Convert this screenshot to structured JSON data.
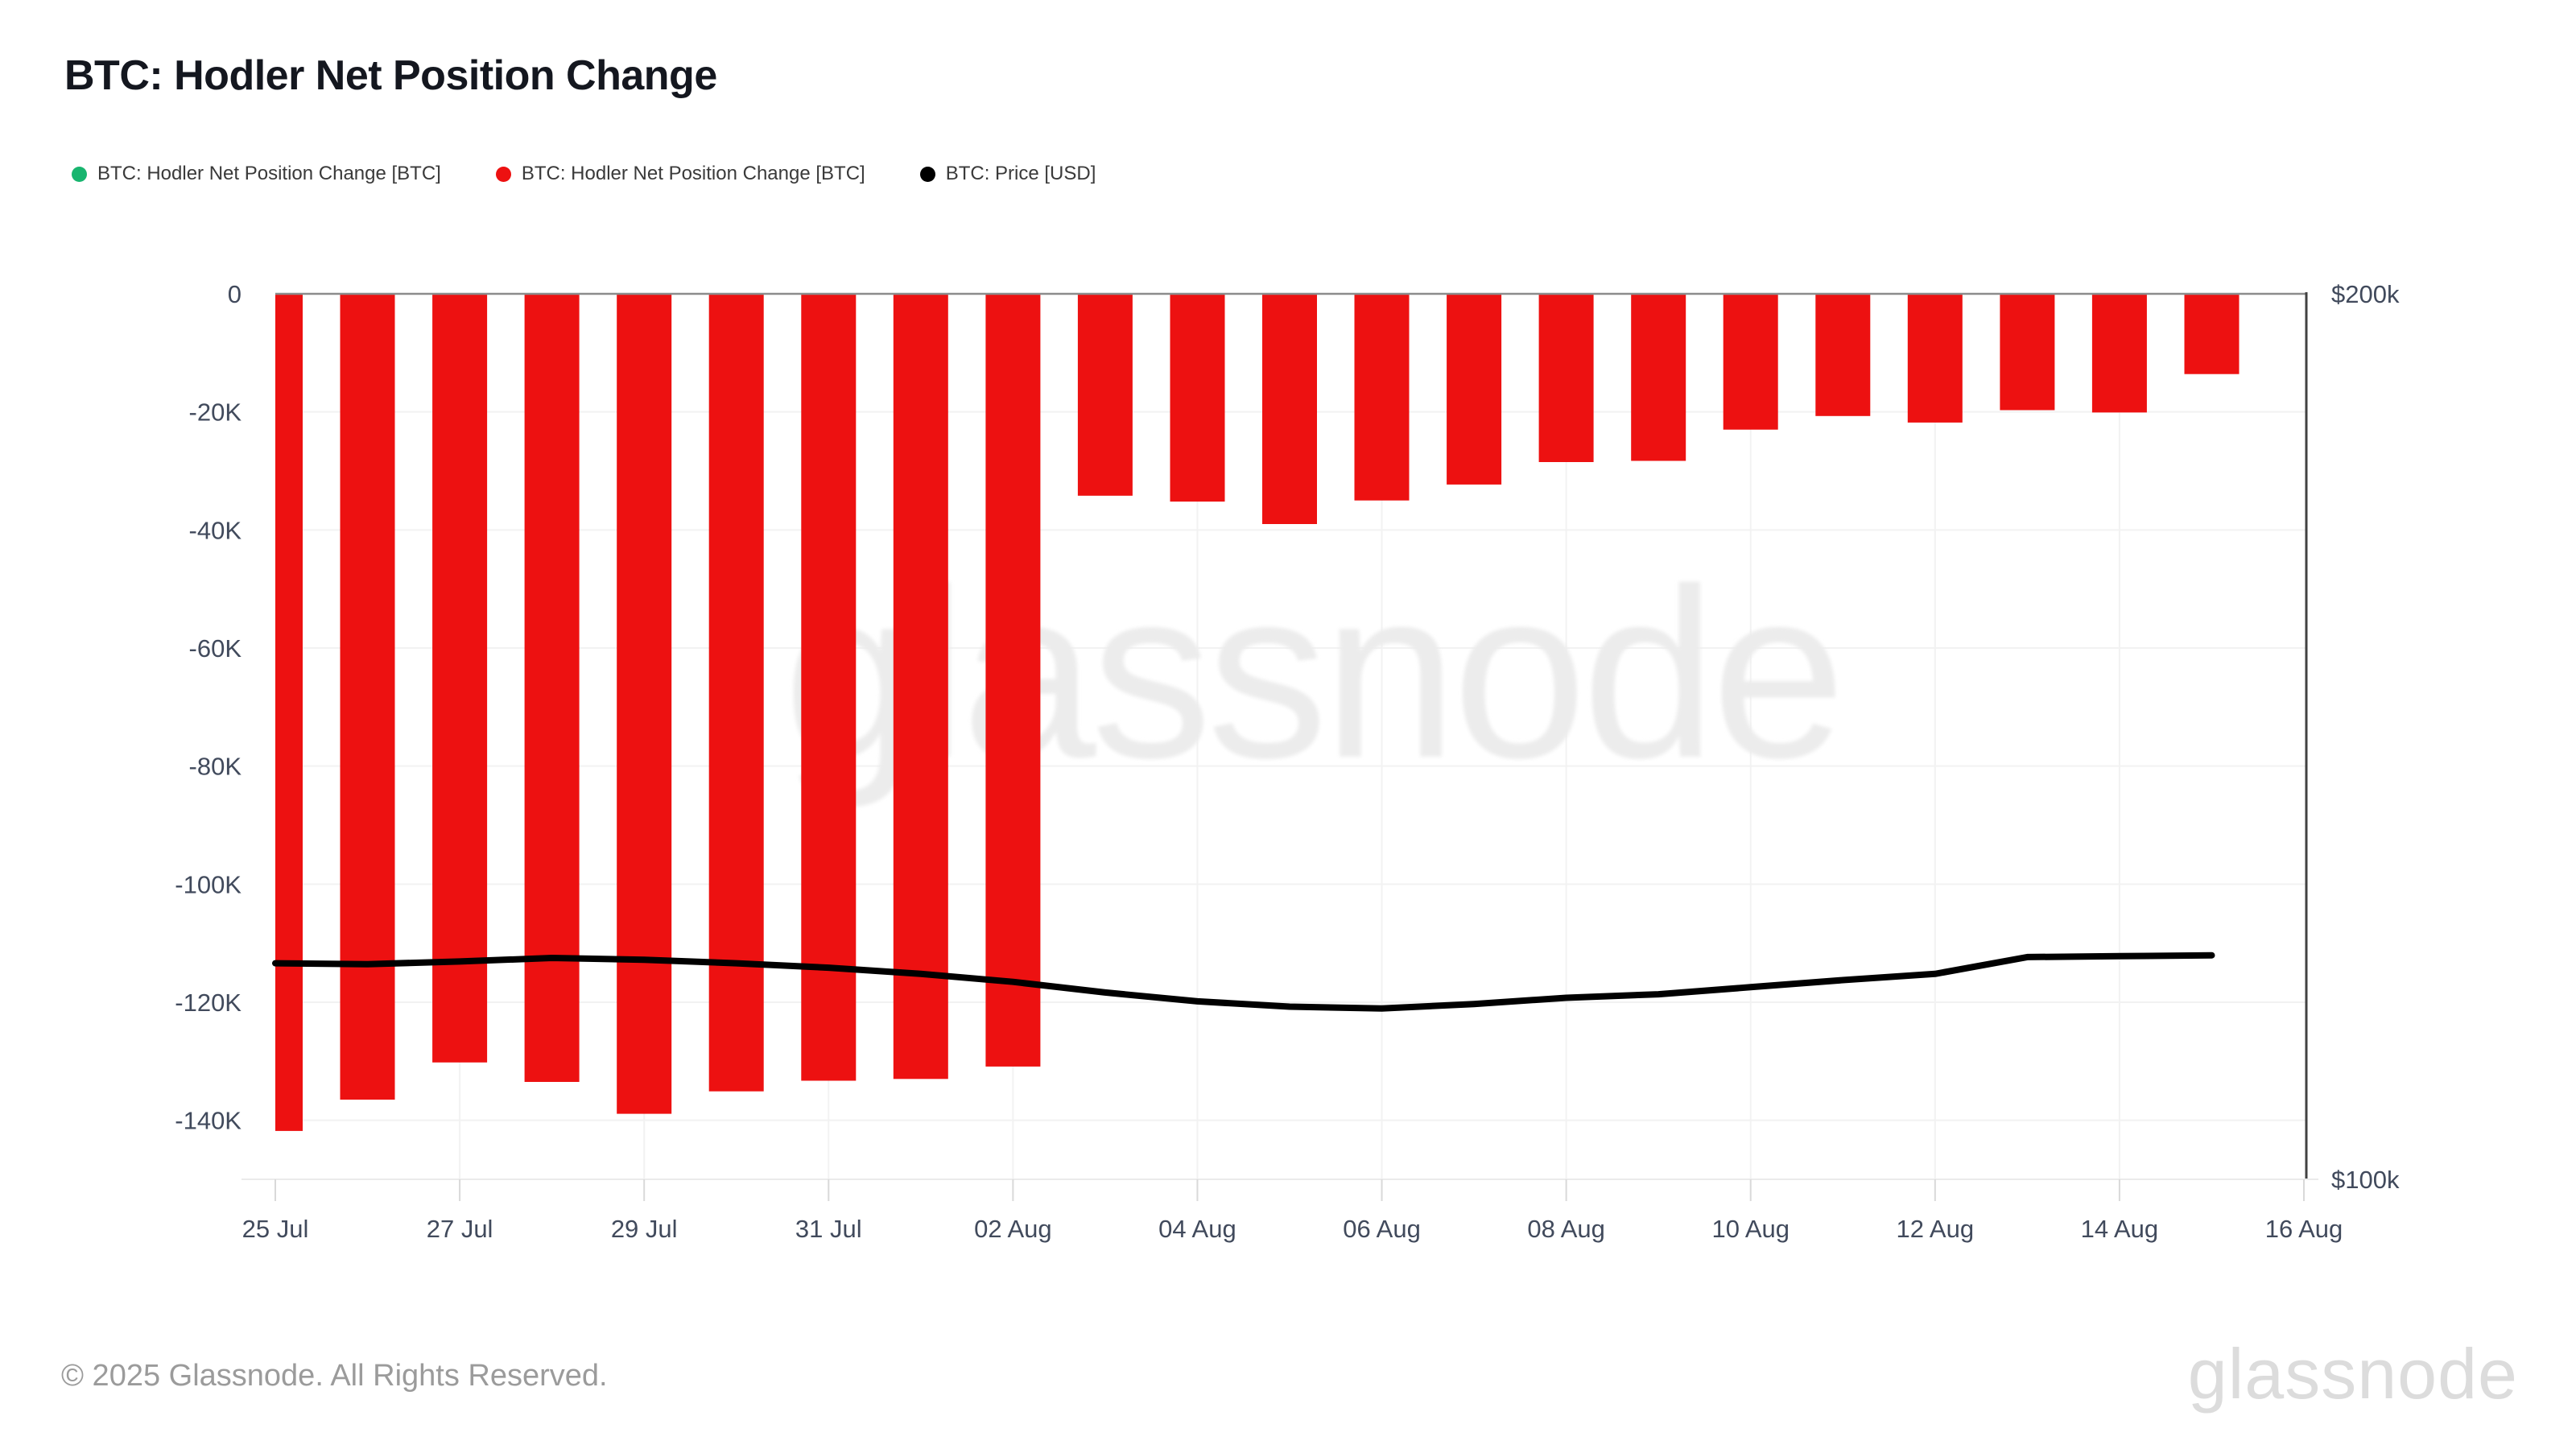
{
  "title": "BTC: Hodler Net Position Change",
  "legend": {
    "items": [
      {
        "label": "BTC: Hodler Net Position Change [BTC]",
        "color": "#18b56f"
      },
      {
        "label": "BTC: Hodler Net Position Change [BTC]",
        "color": "#ed1111"
      },
      {
        "label": "BTC: Price [USD]",
        "color": "#000000"
      }
    ]
  },
  "watermark": "glassnode",
  "footer": {
    "copyright": "© 2025 Glassnode. All Rights Reserved.",
    "logo": "glassnode"
  },
  "colors": {
    "bar_negative": "#ed1111",
    "bar_positive": "#18b56f",
    "price_line": "#000000",
    "axis_text": "#414a5c",
    "gridline": "#f2f2f2",
    "zero_line": "#8c8c8c",
    "right_axis_line": "#414141",
    "bottom_axis_line": "#ebebeb",
    "tick_mark": "#d9d9d9",
    "watermark": "#ececec"
  },
  "chart_data": {
    "type": "bar",
    "title": "BTC: Hodler Net Position Change",
    "categories": [
      "25 Jul",
      "26 Jul",
      "27 Jul",
      "28 Jul",
      "29 Jul",
      "30 Jul",
      "31 Jul",
      "01 Aug",
      "02 Aug",
      "03 Aug",
      "04 Aug",
      "05 Aug",
      "06 Aug",
      "07 Aug",
      "08 Aug",
      "09 Aug",
      "10 Aug",
      "11 Aug",
      "12 Aug",
      "13 Aug",
      "14 Aug",
      "15 Aug"
    ],
    "series": [
      {
        "name": "BTC: Hodler Net Position Change [BTC]",
        "type": "bar",
        "role": "positive-days",
        "color": "#18b56f",
        "values": []
      },
      {
        "name": "BTC: Hodler Net Position Change [BTC]",
        "type": "bar",
        "role": "negative-days",
        "color": "#ed1111",
        "values": [
          -141800,
          -136500,
          -130200,
          -133500,
          -138900,
          -135100,
          -133300,
          -133000,
          -130900,
          -34200,
          -35200,
          -39000,
          -35000,
          -32300,
          -28500,
          -28300,
          -23000,
          -20700,
          -21800,
          -19700,
          -20100,
          -13600
        ]
      },
      {
        "name": "BTC: Price [USD]",
        "type": "line",
        "axis": "right",
        "unit": "USD thousands",
        "color": "#000000",
        "values": [
          124.4,
          124.3,
          124.6,
          125.0,
          124.8,
          124.4,
          123.9,
          123.2,
          122.3,
          121.1,
          120.1,
          119.5,
          119.3,
          119.8,
          120.5,
          120.9,
          121.7,
          122.5,
          123.2,
          125.1,
          125.2,
          125.3
        ]
      }
    ],
    "left_axis": {
      "ticks": [
        "0",
        "-20K",
        "-40K",
        "-60K",
        "-80K",
        "-100K",
        "-120K",
        "-140K"
      ],
      "tick_values": [
        0,
        -20000,
        -40000,
        -60000,
        -80000,
        -100000,
        -120000,
        -140000
      ],
      "range": [
        0,
        -150000
      ],
      "grid": true
    },
    "right_axis": {
      "ticks": [
        "$200k",
        "$100k"
      ],
      "tick_values": [
        200,
        100
      ],
      "range_usd": [
        200000,
        100000
      ]
    },
    "x_axis": {
      "tick_labels": [
        "25 Jul",
        "27 Jul",
        "29 Jul",
        "31 Jul",
        "02 Aug",
        "04 Aug",
        "06 Aug",
        "08 Aug",
        "10 Aug",
        "12 Aug",
        "14 Aug",
        "16 Aug"
      ],
      "grid": true
    },
    "legend_position": "top-left"
  }
}
